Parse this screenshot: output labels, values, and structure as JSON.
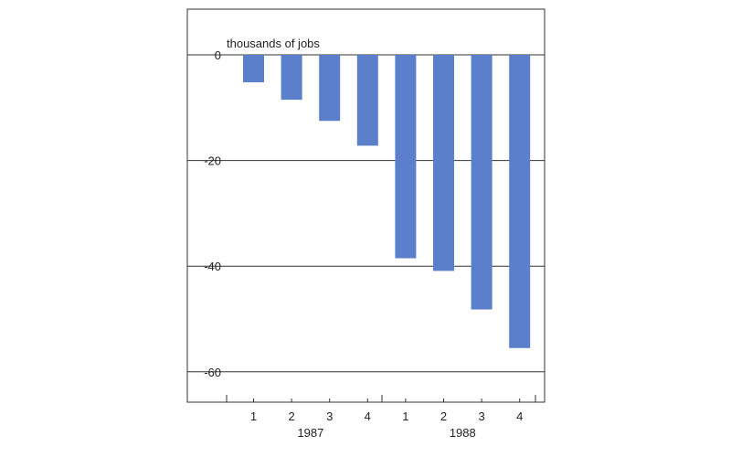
{
  "chart_data": {
    "type": "bar",
    "ylabel": "thousands of jobs",
    "ylim": [
      -65,
      0
    ],
    "yticks": [
      0,
      -20,
      -40,
      -60
    ],
    "grid": true,
    "groups": [
      {
        "label": "1987",
        "quarters": [
          "1",
          "2",
          "3",
          "4"
        ],
        "values": [
          -5.2,
          -8.5,
          -12.5,
          -17.2
        ]
      },
      {
        "label": "1988",
        "quarters": [
          "1",
          "2",
          "3",
          "4"
        ],
        "values": [
          -38.5,
          -40.9,
          -48.2,
          -55.5
        ]
      }
    ],
    "colors": {
      "bar": "#5b7fcb",
      "frame": "#333333",
      "grid": "#333333"
    }
  }
}
